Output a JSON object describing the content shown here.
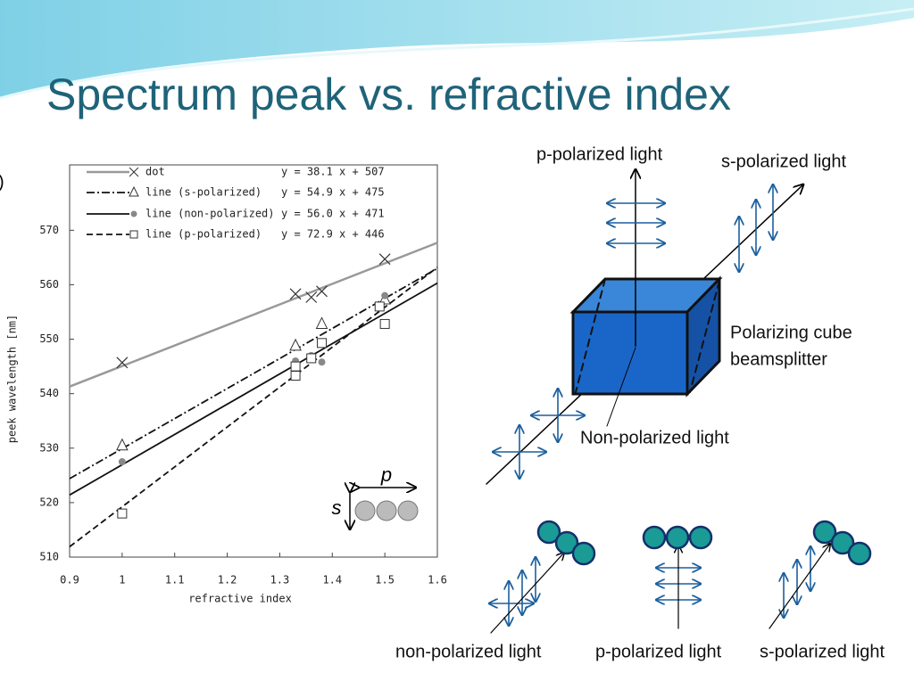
{
  "slide_title": "Spectrum peak vs. refractive index",
  "chart_data": {
    "type": "scatter",
    "panel_label": ")",
    "xlabel": "refractive index",
    "ylabel": "peek wavelength [nm]",
    "xlim": [
      0.9,
      1.6
    ],
    "xticks": [
      0.9,
      1,
      1.1,
      1.2,
      1.3,
      1.4,
      1.5,
      1.6
    ],
    "ylim": [
      510,
      582
    ],
    "yticks": [
      510,
      520,
      530,
      540,
      550,
      560,
      570
    ],
    "series": [
      {
        "name": "dot",
        "equation": "y = 38.1 x + 507",
        "color": "#999999",
        "marker": "x",
        "dash": "solid",
        "x": [
          1.0,
          1.33,
          1.36,
          1.38,
          1.5
        ],
        "values": [
          545.7,
          558.3,
          557.7,
          558.8,
          564.7
        ],
        "fit_x": [
          0.9,
          1.6
        ],
        "fit_y": [
          541.3,
          567.7
        ]
      },
      {
        "name": "line (s-polarized)",
        "equation": "y = 54.9 x + 475",
        "color": "#111111",
        "marker": "triangle",
        "dash": "dashdot",
        "x": [
          1.0,
          1.33,
          1.38,
          1.5
        ],
        "values": [
          530.5,
          548.8,
          552.8,
          557.3
        ],
        "fit_x": [
          0.9,
          1.6
        ],
        "fit_y": [
          524.4,
          563.0
        ]
      },
      {
        "name": "line (non-polarized)",
        "equation": "y = 56.0 x + 471",
        "color": "#111111",
        "marker": "dot",
        "dash": "solid",
        "x": [
          1.0,
          1.33,
          1.36,
          1.38,
          1.5
        ],
        "values": [
          527.5,
          546.0,
          547.0,
          545.8,
          558.0
        ],
        "fit_x": [
          0.9,
          1.6
        ],
        "fit_y": [
          521.4,
          560.3
        ]
      },
      {
        "name": "line (p-polarized)",
        "equation": "y = 72.9 x + 446",
        "color": "#111111",
        "marker": "square",
        "dash": "dashed",
        "x": [
          1.0,
          1.33,
          1.33,
          1.36,
          1.38,
          1.49,
          1.5
        ],
        "values": [
          518.0,
          543.3,
          545.0,
          546.5,
          549.3,
          556.0,
          552.8
        ],
        "fit_x": [
          0.9,
          1.6
        ],
        "fit_y": [
          511.9,
          563.2
        ]
      }
    ],
    "inset": {
      "p": "p",
      "s": "s"
    }
  },
  "diagram": {
    "p_label": "p-polarized light",
    "s_label": "s-polarized light",
    "cube_label": [
      "Polarizing cube",
      "beamsplitter"
    ],
    "input_label": "Non-polarized light",
    "bottom_labels": [
      "non-polarized light",
      "p-polarized light",
      "s-polarized light"
    ]
  }
}
